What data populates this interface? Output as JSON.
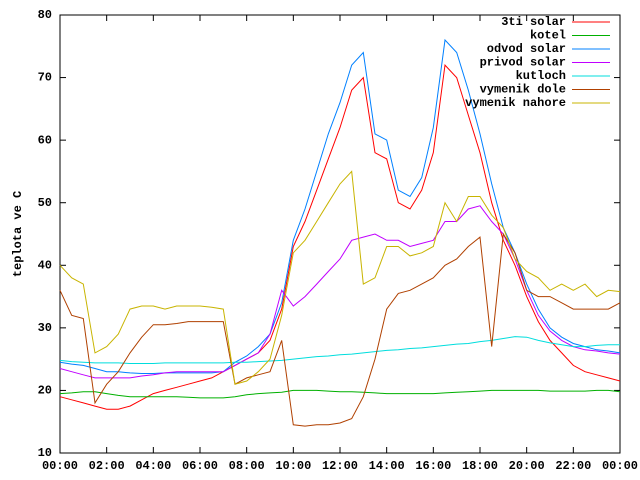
{
  "chart_data": {
    "type": "line",
    "y_label": "teplota ve C",
    "x": [
      0,
      0.5,
      1,
      1.5,
      2,
      2.5,
      3,
      3.5,
      4,
      4.5,
      5,
      5.5,
      6,
      6.5,
      7,
      7.5,
      8,
      8.5,
      9,
      9.5,
      10,
      10.5,
      11,
      11.5,
      12,
      12.5,
      13,
      13.5,
      14,
      14.5,
      15,
      15.5,
      16,
      16.5,
      17,
      17.5,
      18,
      18.5,
      19,
      19.5,
      20,
      20.5,
      21,
      21.5,
      22,
      22.5,
      23,
      23.5,
      24
    ],
    "xlim": [
      0,
      24
    ],
    "xticks": [
      {
        "value": 0,
        "label": "00:00"
      },
      {
        "value": 2,
        "label": "02:00"
      },
      {
        "value": 4,
        "label": "04:00"
      },
      {
        "value": 6,
        "label": "06:00"
      },
      {
        "value": 8,
        "label": "08:00"
      },
      {
        "value": 10,
        "label": "10:00"
      },
      {
        "value": 12,
        "label": "12:00"
      },
      {
        "value": 14,
        "label": "14:00"
      },
      {
        "value": 16,
        "label": "16:00"
      },
      {
        "value": 18,
        "label": "18:00"
      },
      {
        "value": 20,
        "label": "20:00"
      },
      {
        "value": 22,
        "label": "22:00"
      },
      {
        "value": 24,
        "label": "00:00"
      }
    ],
    "ylim": [
      10,
      80
    ],
    "yticks": [
      10,
      20,
      30,
      40,
      50,
      60,
      70,
      80
    ],
    "legend": "top-right",
    "series": [
      {
        "name": "3ti solar",
        "color": "#ff0000",
        "values": [
          19,
          18.5,
          18,
          17.5,
          17,
          17,
          17.5,
          18.5,
          19.5,
          20,
          20.5,
          21,
          21.5,
          22,
          23,
          24,
          25,
          26,
          28,
          33,
          43,
          47,
          52,
          57,
          62,
          68,
          70,
          58,
          57,
          50,
          49,
          52,
          58,
          72,
          70,
          64,
          58,
          50,
          44,
          40,
          35,
          31,
          28,
          26,
          24,
          23,
          22.5,
          22,
          21.5
        ]
      },
      {
        "name": "kotel",
        "color": "#00b000",
        "values": [
          19.5,
          19.6,
          19.8,
          19.8,
          19.5,
          19.2,
          19,
          19,
          19,
          19,
          19,
          18.9,
          18.8,
          18.8,
          18.8,
          19,
          19.3,
          19.5,
          19.6,
          19.7,
          20,
          20,
          20,
          19.9,
          19.8,
          19.8,
          19.7,
          19.6,
          19.5,
          19.5,
          19.5,
          19.5,
          19.5,
          19.6,
          19.7,
          19.8,
          19.9,
          20,
          20,
          20,
          20,
          20,
          19.9,
          19.9,
          19.9,
          19.9,
          20,
          20,
          19.8
        ]
      },
      {
        "name": "odvod solar",
        "color": "#0080ff",
        "values": [
          24.5,
          24.2,
          24,
          23.5,
          23,
          23,
          22.8,
          22.7,
          22.7,
          22.8,
          22.8,
          22.8,
          22.8,
          22.8,
          23,
          24.5,
          25.5,
          27,
          29,
          34,
          44,
          49,
          55,
          61,
          66,
          72,
          74,
          61,
          60,
          52,
          51,
          54,
          62,
          76,
          74,
          68,
          61,
          53,
          46,
          42,
          37,
          33,
          30,
          28.5,
          27.5,
          27,
          26.5,
          26.3,
          26
        ]
      },
      {
        "name": "privod solar",
        "color": "#c000ff",
        "values": [
          23.5,
          23,
          22.5,
          22,
          22,
          22,
          22,
          22.3,
          22.5,
          22.8,
          23,
          23,
          23,
          23,
          23,
          24,
          25,
          26,
          29,
          36,
          33.5,
          35,
          37,
          39,
          41,
          44,
          44.5,
          45,
          44,
          44,
          43,
          43.5,
          44,
          47,
          47,
          49,
          49.5,
          47,
          45,
          41,
          36,
          32,
          29.5,
          28,
          27,
          26.5,
          26.3,
          26,
          25.8
        ]
      },
      {
        "name": "kutloch",
        "color": "#00dddd",
        "values": [
          24.8,
          24.6,
          24.5,
          24.4,
          24.4,
          24.4,
          24.3,
          24.3,
          24.3,
          24.4,
          24.4,
          24.4,
          24.4,
          24.4,
          24.4,
          24.5,
          24.5,
          24.6,
          24.7,
          24.8,
          25,
          25.2,
          25.4,
          25.5,
          25.7,
          25.8,
          26,
          26.2,
          26.4,
          26.5,
          26.7,
          26.8,
          27,
          27.2,
          27.4,
          27.5,
          27.8,
          28,
          28.3,
          28.6,
          28.5,
          28,
          27.6,
          27.3,
          27,
          27,
          27.2,
          27.3,
          27.3
        ]
      },
      {
        "name": "vymenik dole",
        "color": "#b04000",
        "values": [
          36,
          32,
          31.5,
          18,
          21,
          23,
          26,
          28.5,
          30.5,
          30.5,
          30.7,
          31,
          31,
          31,
          31,
          21,
          22,
          22.5,
          23,
          28,
          14.5,
          14.3,
          14.5,
          14.5,
          14.8,
          15.5,
          19,
          25,
          33,
          35.5,
          36,
          37,
          38,
          40,
          41,
          43,
          44.5,
          27,
          45,
          42,
          36,
          35,
          35,
          34,
          33,
          33,
          33,
          33,
          34
        ]
      },
      {
        "name": "vymenik nahore",
        "color": "#c8b400",
        "values": [
          40,
          38,
          37,
          26,
          27,
          29,
          33,
          33.5,
          33.5,
          33,
          33.5,
          33.5,
          33.5,
          33.3,
          33,
          21,
          21.5,
          23,
          25,
          32,
          42,
          44,
          47,
          50,
          53,
          55,
          37,
          38,
          43,
          43,
          41.5,
          42,
          43,
          50,
          47,
          51,
          51,
          48,
          46,
          41,
          39,
          38,
          36,
          37,
          36,
          37,
          35,
          36,
          35.8
        ]
      }
    ]
  }
}
